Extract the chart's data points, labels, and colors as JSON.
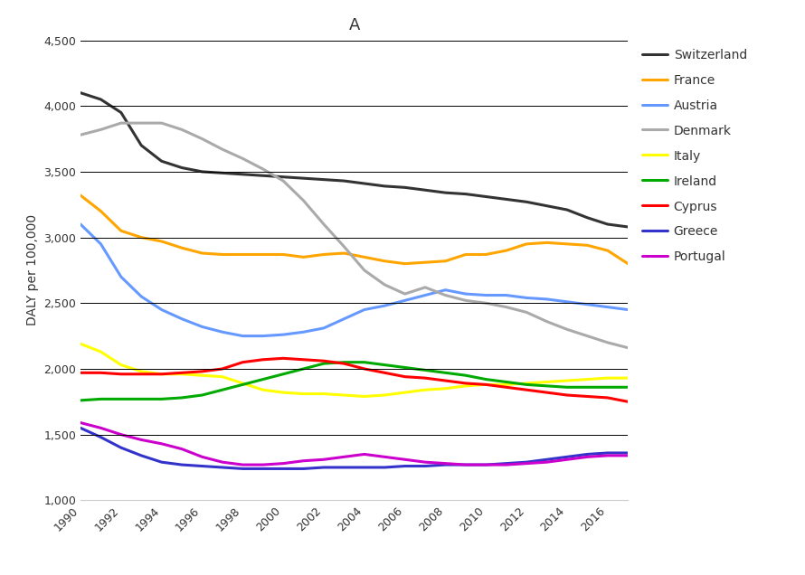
{
  "title": "A",
  "ylabel": "DALY per 100,000",
  "years": [
    1990,
    1991,
    1992,
    1993,
    1994,
    1995,
    1996,
    1997,
    1998,
    1999,
    2000,
    2001,
    2002,
    2003,
    2004,
    2005,
    2006,
    2007,
    2008,
    2009,
    2010,
    2011,
    2012,
    2013,
    2014,
    2015,
    2016,
    2017
  ],
  "ylim": [
    1000,
    4500
  ],
  "yticks": [
    1000,
    1500,
    2000,
    2500,
    3000,
    3500,
    4000,
    4500
  ],
  "xticks": [
    1990,
    1992,
    1994,
    1996,
    1998,
    2000,
    2002,
    2004,
    2006,
    2008,
    2010,
    2012,
    2014,
    2016
  ],
  "series": {
    "Switzerland": {
      "color": "#333333",
      "linewidth": 2.2,
      "values": [
        4100,
        4050,
        3950,
        3700,
        3580,
        3530,
        3500,
        3490,
        3480,
        3470,
        3460,
        3450,
        3440,
        3430,
        3410,
        3390,
        3380,
        3360,
        3340,
        3330,
        3310,
        3290,
        3270,
        3240,
        3210,
        3150,
        3100,
        3080
      ]
    },
    "France": {
      "color": "#FFA500",
      "linewidth": 2.2,
      "values": [
        3320,
        3200,
        3050,
        3000,
        2970,
        2920,
        2880,
        2870,
        2870,
        2870,
        2870,
        2850,
        2870,
        2880,
        2850,
        2820,
        2800,
        2810,
        2820,
        2870,
        2870,
        2900,
        2950,
        2960,
        2950,
        2940,
        2900,
        2800
      ]
    },
    "Austria": {
      "color": "#6699FF",
      "linewidth": 2.2,
      "values": [
        3100,
        2950,
        2700,
        2550,
        2450,
        2380,
        2320,
        2280,
        2250,
        2250,
        2260,
        2280,
        2310,
        2380,
        2450,
        2480,
        2520,
        2560,
        2600,
        2570,
        2560,
        2560,
        2540,
        2530,
        2510,
        2490,
        2470,
        2450
      ]
    },
    "Denmark": {
      "color": "#AAAAAA",
      "linewidth": 2.2,
      "values": [
        3780,
        3820,
        3870,
        3870,
        3870,
        3820,
        3750,
        3670,
        3600,
        3520,
        3430,
        3280,
        3100,
        2930,
        2750,
        2640,
        2570,
        2620,
        2560,
        2520,
        2500,
        2470,
        2430,
        2360,
        2300,
        2250,
        2200,
        2160
      ]
    },
    "Italy": {
      "color": "#FFFF00",
      "linewidth": 2.2,
      "values": [
        2190,
        2130,
        2030,
        1980,
        1960,
        1960,
        1950,
        1940,
        1890,
        1840,
        1820,
        1810,
        1810,
        1800,
        1790,
        1800,
        1820,
        1840,
        1850,
        1870,
        1880,
        1880,
        1890,
        1900,
        1910,
        1920,
        1930,
        1930
      ]
    },
    "Ireland": {
      "color": "#00AA00",
      "linewidth": 2.2,
      "values": [
        1760,
        1770,
        1770,
        1770,
        1770,
        1780,
        1800,
        1840,
        1880,
        1920,
        1960,
        2000,
        2040,
        2050,
        2050,
        2030,
        2010,
        1990,
        1970,
        1950,
        1920,
        1900,
        1880,
        1870,
        1860,
        1860,
        1860,
        1860
      ]
    },
    "Cyprus": {
      "color": "#FF0000",
      "linewidth": 2.2,
      "values": [
        1970,
        1970,
        1960,
        1960,
        1960,
        1970,
        1980,
        2000,
        2050,
        2070,
        2080,
        2070,
        2060,
        2040,
        2000,
        1970,
        1940,
        1930,
        1910,
        1890,
        1880,
        1860,
        1840,
        1820,
        1800,
        1790,
        1780,
        1750
      ]
    },
    "Greece": {
      "color": "#3333CC",
      "linewidth": 2.2,
      "values": [
        1550,
        1480,
        1400,
        1340,
        1290,
        1270,
        1260,
        1250,
        1240,
        1240,
        1240,
        1240,
        1250,
        1250,
        1250,
        1250,
        1260,
        1260,
        1270,
        1270,
        1270,
        1280,
        1290,
        1310,
        1330,
        1350,
        1360,
        1360
      ]
    },
    "Portugal": {
      "color": "#CC00CC",
      "linewidth": 2.2,
      "values": [
        1590,
        1550,
        1500,
        1460,
        1430,
        1390,
        1330,
        1290,
        1270,
        1270,
        1280,
        1300,
        1310,
        1330,
        1350,
        1330,
        1310,
        1290,
        1280,
        1270,
        1270,
        1270,
        1280,
        1290,
        1310,
        1330,
        1340,
        1340
      ]
    }
  },
  "background_color": "#FFFFFF",
  "grid_color": "#000000",
  "grid_linewidth": 0.7,
  "title_fontsize": 13,
  "tick_fontsize": 9,
  "label_fontsize": 10,
  "legend_fontsize": 10
}
